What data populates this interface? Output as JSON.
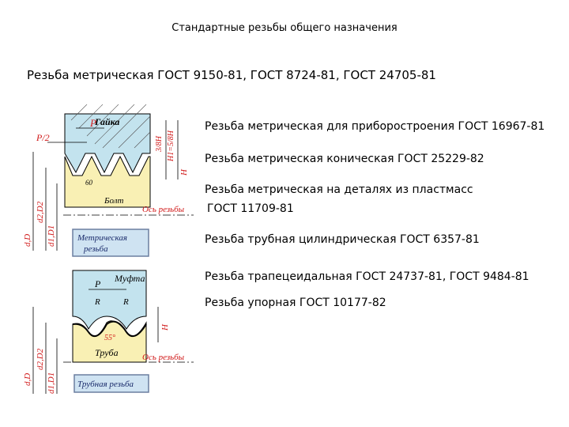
{
  "title": "Стандартные резьбы общего назначения",
  "main_heading": "Резьба метрическая ГОСТ 9150-81, ГОСТ 8724-81, ГОСТ 24705-81",
  "thread_list": [
    "Резьба метрическая для приборостроения ГОСТ 16967-81",
    "Резьба метрическая коническая ГОСТ 25229-82",
    "Резьба метрическая на деталях из пластмасс",
    " ГОСТ 11709-81",
    "Резьба трубная цилиндрическая ГОСТ 6357-81",
    "Резьба трапецеидальная ГОСТ 24737-81, ГОСТ 9484-81",
    "Резьба упорная  ГОСТ 10177-82"
  ],
  "metric_diagram": {
    "box_label_line1": "Метрическая",
    "box_label_line2": "резьба",
    "nut": "Гайка",
    "bolt": "Болт",
    "axis": "Ось резьбы",
    "pitch": "P",
    "half_pitch": "P/2",
    "angle": "60",
    "h38": "3/8H",
    "h1": "H1=5/8H",
    "h": "H",
    "d_big": "d,D",
    "d2": "d2,D2",
    "d1": "d1,D1"
  },
  "pipe_diagram": {
    "box_label": "Трубная резьба",
    "coupling": "Муфта",
    "pipe": "Труба",
    "axis": "Ось резьбы",
    "pitch": "P",
    "radius_left": "R",
    "radius_right": "R",
    "angle": "55°",
    "h": "H",
    "d_big": "d,D",
    "d2": "d2,D2",
    "d1": "d1,D1"
  },
  "colors": {
    "nut_fill": "#c3e3ee",
    "bolt_fill": "#f9f0b4",
    "red_text": "#d11a1a",
    "box_fill": "#cfe3f2"
  }
}
